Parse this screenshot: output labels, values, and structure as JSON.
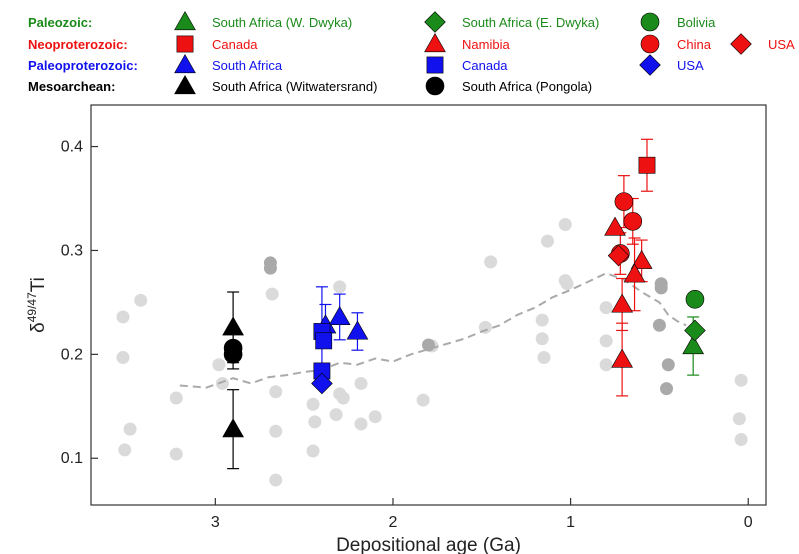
{
  "chart_data": {
    "type": "scatter",
    "xlabel": "Depositional age (Ga)",
    "ylabel_main": "δ",
    "ylabel_sup": "49/47",
    "ylabel_elem": "Ti",
    "xlim": [
      3.7,
      -0.1
    ],
    "ylim": [
      0.055,
      0.44
    ],
    "x_reversed": true,
    "x_ticks": [
      {
        "v": 3,
        "label": "3"
      },
      {
        "v": 2,
        "label": "2"
      },
      {
        "v": 1,
        "label": "1"
      },
      {
        "v": 0,
        "label": "0"
      }
    ],
    "y_ticks": [
      {
        "v": 0.1,
        "label": "0.1"
      },
      {
        "v": 0.2,
        "label": "0.2"
      },
      {
        "v": 0.3,
        "label": "0.3"
      },
      {
        "v": 0.4,
        "label": "0.4"
      }
    ],
    "legend_groups": [
      {
        "label": "Paleozoic:",
        "color": "#1a8a1a"
      },
      {
        "label": "Neoproterozoic:",
        "color": "#ee1111"
      },
      {
        "label": "Paleoproterozoic:",
        "color": "#1111ee"
      },
      {
        "label": "Mesoarchean:",
        "color": "#000000"
      }
    ],
    "series": [
      {
        "name": "South Africa (W. Dwyka)",
        "era": "Paleozoic",
        "color": "#1a8a1a",
        "marker": "triangle",
        "points": [
          {
            "x": 0.31,
            "y": 0.208,
            "err": 0.028
          }
        ]
      },
      {
        "name": "South Africa (E. Dwyka)",
        "era": "Paleozoic",
        "color": "#1a8a1a",
        "marker": "diamond",
        "points": [
          {
            "x": 0.3,
            "y": 0.223,
            "err": 0.0
          }
        ]
      },
      {
        "name": "Bolivia",
        "era": "Paleozoic",
        "color": "#1a8a1a",
        "marker": "circle",
        "points": [
          {
            "x": 0.3,
            "y": 0.253,
            "err": 0.0
          }
        ]
      },
      {
        "name": "Canada",
        "era": "Neoproterozoic",
        "color": "#ee1111",
        "marker": "square",
        "points": [
          {
            "x": 0.57,
            "y": 0.382,
            "err": 0.025
          }
        ]
      },
      {
        "name": "Namibia",
        "era": "Neoproterozoic",
        "color": "#ee1111",
        "marker": "triangle",
        "points": [
          {
            "x": 0.75,
            "y": 0.322,
            "err": 0.0
          },
          {
            "x": 0.6,
            "y": 0.29,
            "err": 0.02
          },
          {
            "x": 0.64,
            "y": 0.277,
            "err": 0.035
          },
          {
            "x": 0.71,
            "y": 0.248,
            "err": 0.025
          },
          {
            "x": 0.71,
            "y": 0.195,
            "err": 0.035
          }
        ]
      },
      {
        "name": "China",
        "era": "Neoproterozoic",
        "color": "#ee1111",
        "marker": "circle",
        "points": [
          {
            "x": 0.7,
            "y": 0.347,
            "err": 0.025
          },
          {
            "x": 0.65,
            "y": 0.328,
            "err": 0.022
          },
          {
            "x": 0.72,
            "y": 0.297,
            "err": 0.02
          }
        ]
      },
      {
        "name": "USA",
        "era": "Neoproterozoic",
        "color": "#ee1111",
        "marker": "diamond",
        "points": [
          {
            "x": 0.73,
            "y": 0.295,
            "err": 0.0
          }
        ]
      },
      {
        "name": "South Africa",
        "era": "Paleoproterozoic",
        "color": "#1111ee",
        "marker": "triangle",
        "points": [
          {
            "x": 2.38,
            "y": 0.228,
            "err": 0.02
          },
          {
            "x": 2.3,
            "y": 0.236,
            "err": 0.022
          },
          {
            "x": 2.2,
            "y": 0.222,
            "err": 0.018
          }
        ]
      },
      {
        "name": "Canada",
        "era": "Paleoproterozoic",
        "color": "#1111ee",
        "marker": "square",
        "points": [
          {
            "x": 2.4,
            "y": 0.222,
            "err": 0.043
          },
          {
            "x": 2.39,
            "y": 0.213,
            "err": 0.0
          },
          {
            "x": 2.4,
            "y": 0.184,
            "err": 0.0
          }
        ]
      },
      {
        "name": "USA",
        "era": "Paleoproterozoic",
        "color": "#1111ee",
        "marker": "diamond",
        "points": [
          {
            "x": 2.4,
            "y": 0.172,
            "err": 0.0
          }
        ]
      },
      {
        "name": "South Africa (Witwatersrand)",
        "era": "Mesoarchean",
        "color": "#000000",
        "marker": "triangle",
        "points": [
          {
            "x": 2.9,
            "y": 0.226,
            "err": 0.034
          },
          {
            "x": 2.9,
            "y": 0.128,
            "err": 0.038
          }
        ]
      },
      {
        "name": "South Africa (Pongola)",
        "era": "Mesoarchean",
        "color": "#000000",
        "marker": "circle",
        "points": [
          {
            "x": 2.9,
            "y": 0.206,
            "err": 0.02
          },
          {
            "x": 2.9,
            "y": 0.2,
            "err": 0.0
          }
        ]
      }
    ],
    "background_points_light": [
      [
        3.52,
        0.236
      ],
      [
        3.52,
        0.197
      ],
      [
        3.51,
        0.108
      ],
      [
        3.48,
        0.128
      ],
      [
        3.42,
        0.252
      ],
      [
        3.22,
        0.158
      ],
      [
        3.22,
        0.104
      ],
      [
        2.98,
        0.19
      ],
      [
        2.96,
        0.172
      ],
      [
        2.68,
        0.258
      ],
      [
        2.66,
        0.164
      ],
      [
        2.66,
        0.126
      ],
      [
        2.66,
        0.079
      ],
      [
        2.45,
        0.107
      ],
      [
        2.45,
        0.152
      ],
      [
        2.44,
        0.135
      ],
      [
        2.3,
        0.265
      ],
      [
        2.3,
        0.162
      ],
      [
        2.28,
        0.158
      ],
      [
        2.32,
        0.142
      ],
      [
        2.18,
        0.172
      ],
      [
        2.18,
        0.133
      ],
      [
        2.1,
        0.14
      ],
      [
        1.83,
        0.156
      ],
      [
        1.78,
        0.208
      ],
      [
        1.48,
        0.226
      ],
      [
        1.45,
        0.289
      ],
      [
        1.13,
        0.309
      ],
      [
        1.16,
        0.233
      ],
      [
        1.16,
        0.215
      ],
      [
        1.15,
        0.197
      ],
      [
        1.03,
        0.325
      ],
      [
        1.03,
        0.271
      ],
      [
        1.02,
        0.268
      ],
      [
        0.8,
        0.245
      ],
      [
        0.8,
        0.213
      ],
      [
        0.8,
        0.19
      ],
      [
        0.04,
        0.175
      ],
      [
        0.05,
        0.138
      ],
      [
        0.04,
        0.118
      ]
    ],
    "background_points_dark": [
      [
        2.69,
        0.288
      ],
      [
        2.69,
        0.283
      ],
      [
        1.8,
        0.209
      ],
      [
        0.49,
        0.268
      ],
      [
        0.49,
        0.264
      ],
      [
        0.5,
        0.228
      ],
      [
        0.45,
        0.19
      ],
      [
        0.46,
        0.167
      ]
    ],
    "trend_line": [
      [
        3.2,
        0.17
      ],
      [
        3.05,
        0.168
      ],
      [
        2.9,
        0.177
      ],
      [
        2.8,
        0.172
      ],
      [
        2.7,
        0.178
      ],
      [
        2.6,
        0.18
      ],
      [
        2.5,
        0.183
      ],
      [
        2.4,
        0.185
      ],
      [
        2.3,
        0.192
      ],
      [
        2.2,
        0.19
      ],
      [
        2.1,
        0.196
      ],
      [
        2.0,
        0.193
      ],
      [
        1.9,
        0.2
      ],
      [
        1.8,
        0.205
      ],
      [
        1.7,
        0.21
      ],
      [
        1.6,
        0.215
      ],
      [
        1.5,
        0.222
      ],
      [
        1.4,
        0.228
      ],
      [
        1.3,
        0.238
      ],
      [
        1.2,
        0.245
      ],
      [
        1.1,
        0.255
      ],
      [
        1.0,
        0.262
      ],
      [
        0.9,
        0.27
      ],
      [
        0.8,
        0.278
      ],
      [
        0.7,
        0.272
      ],
      [
        0.6,
        0.26
      ],
      [
        0.5,
        0.25
      ],
      [
        0.45,
        0.238
      ],
      [
        0.4,
        0.232
      ],
      [
        0.35,
        0.228
      ]
    ]
  }
}
